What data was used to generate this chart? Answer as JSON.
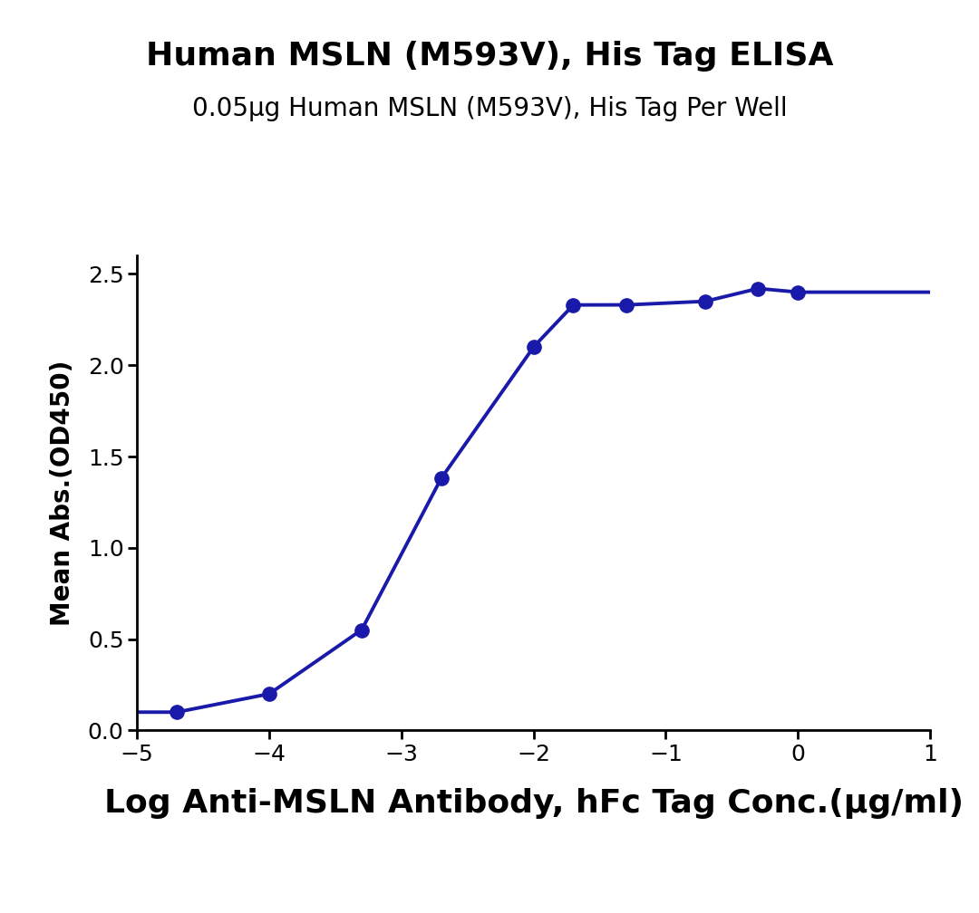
{
  "title_line1": "Human MSLN (M593V), His Tag ELISA",
  "title_line2": "0.05μg Human MSLN (M593V), His Tag Per Well",
  "xlabel": "Log Anti-MSLN Antibody, hFc Tag Conc.(μg/ml)",
  "ylabel": "Mean Abs.(OD450)",
  "x_data": [
    -4.699,
    -4.0,
    -3.301,
    -2.699,
    -2.0,
    -1.699,
    -1.301,
    -0.699,
    -0.301,
    0.0
  ],
  "y_data": [
    0.1,
    0.2,
    0.55,
    1.38,
    2.1,
    2.33,
    2.33,
    2.35,
    2.42,
    2.4
  ],
  "xlim": [
    -5,
    1
  ],
  "ylim": [
    0,
    2.6
  ],
  "xticks": [
    -5,
    -4,
    -3,
    -2,
    -1,
    0,
    1
  ],
  "yticks": [
    0.0,
    0.5,
    1.0,
    1.5,
    2.0,
    2.5
  ],
  "line_color": "#1a1aaa",
  "marker_color": "#1a1aaa",
  "marker_size": 11,
  "line_width": 2.8,
  "title_fontsize": 26,
  "subtitle_fontsize": 20,
  "xlabel_fontsize": 26,
  "ylabel_fontsize": 20,
  "tick_fontsize": 18,
  "background_color": "#ffffff"
}
